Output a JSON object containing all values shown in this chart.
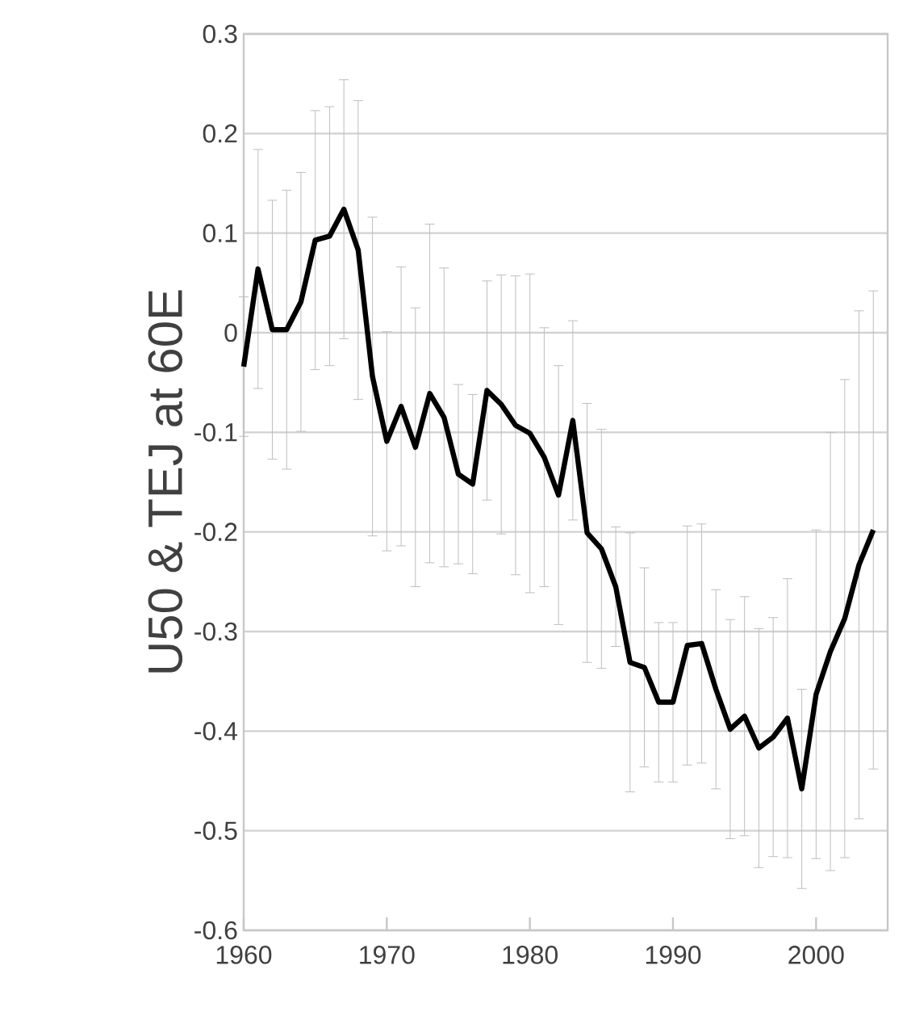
{
  "chart_data": {
    "type": "line",
    "ylabel": "U50 & TEJ at 60E",
    "x": [
      1960,
      1961,
      1962,
      1963,
      1964,
      1965,
      1966,
      1967,
      1968,
      1969,
      1970,
      1971,
      1972,
      1973,
      1974,
      1975,
      1976,
      1977,
      1978,
      1979,
      1980,
      1981,
      1982,
      1983,
      1984,
      1985,
      1986,
      1987,
      1988,
      1989,
      1990,
      1991,
      1992,
      1993,
      1994,
      1995,
      1996,
      1997,
      1998,
      1999,
      2000,
      2001,
      2002,
      2003,
      2004
    ],
    "series": [
      {
        "color": "#000000",
        "values": [
          -0.034,
          0.064,
          0.003,
          0.003,
          0.031,
          0.093,
          0.097,
          0.124,
          0.083,
          -0.044,
          -0.109,
          -0.074,
          -0.115,
          -0.061,
          -0.085,
          -0.142,
          -0.152,
          -0.058,
          -0.072,
          -0.093,
          -0.101,
          -0.125,
          -0.163,
          -0.088,
          -0.201,
          -0.217,
          -0.255,
          -0.331,
          -0.336,
          -0.371,
          -0.371,
          -0.314,
          -0.312,
          -0.358,
          -0.398,
          -0.385,
          -0.417,
          -0.406,
          -0.387,
          -0.458,
          -0.363,
          -0.32,
          -0.287,
          -0.233,
          -0.198
        ],
        "errors": [
          0.07,
          0.12,
          0.13,
          0.14,
          0.13,
          0.13,
          0.13,
          0.13,
          0.15,
          0.16,
          0.11,
          0.14,
          0.14,
          0.17,
          0.15,
          0.09,
          0.09,
          0.11,
          0.13,
          0.15,
          0.16,
          0.13,
          0.13,
          0.1,
          0.13,
          0.12,
          0.06,
          0.13,
          0.1,
          0.08,
          0.08,
          0.12,
          0.12,
          0.1,
          0.11,
          0.12,
          0.12,
          0.12,
          0.14,
          0.1,
          0.165,
          0.22,
          0.24,
          0.255,
          0.24
        ]
      }
    ],
    "xlim": [
      1960,
      2005
    ],
    "xticks": [
      1960,
      1970,
      1980,
      1990,
      2000
    ],
    "ylim": [
      -0.6,
      0.3
    ],
    "yticks": [
      -0.6,
      -0.5,
      -0.4,
      -0.3,
      -0.2,
      -0.1,
      0,
      0.1,
      0.2,
      0.3
    ],
    "grid": "y",
    "marker": "none",
    "line_style": "solid"
  }
}
